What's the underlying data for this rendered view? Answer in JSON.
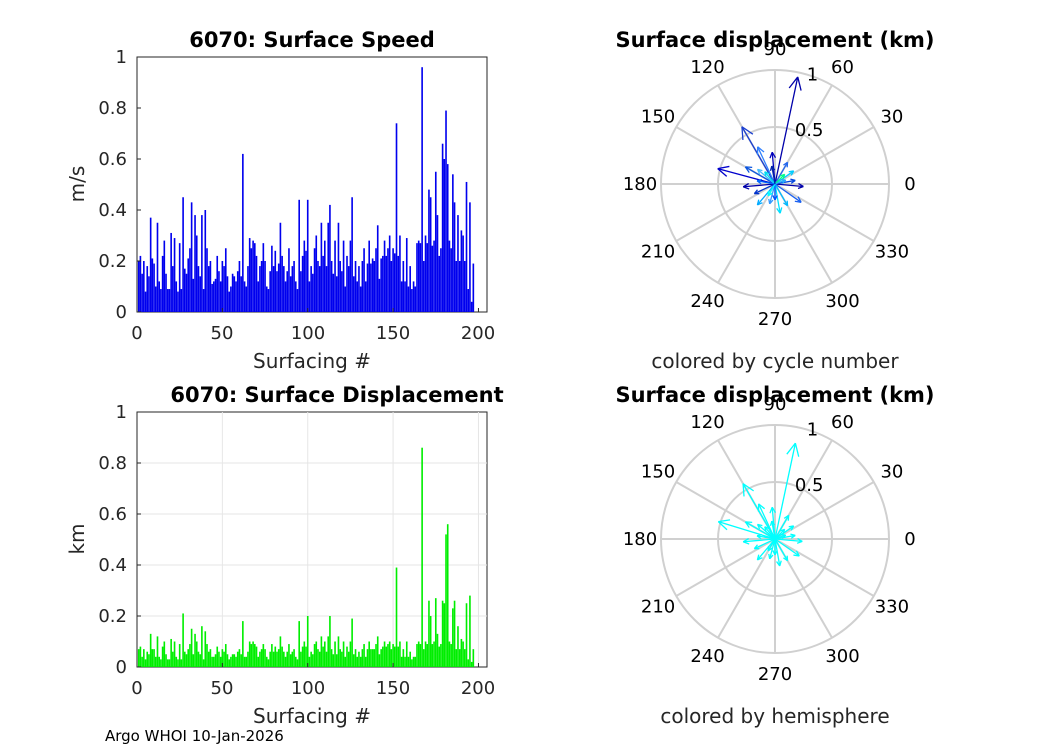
{
  "footer": "Argo WHOI 10-Jan-2026",
  "colors": {
    "speed_bar": "#0000ee",
    "disp_bar": "#00ee00",
    "cyan": "#00ffff",
    "blue": "#0000aa",
    "grid": "#d0d0d0"
  },
  "chart_data": [
    {
      "id": "speed",
      "type": "bar",
      "title": "6070: Surface Speed",
      "xlabel": "Surfacing #",
      "ylabel": "m/s",
      "xlim": [
        0,
        205
      ],
      "ylim": [
        0,
        1
      ],
      "xticks": [
        0,
        50,
        100,
        150,
        200
      ],
      "yticks": [
        0,
        0.2,
        0.4,
        0.6,
        0.8,
        1
      ],
      "ytick_labels": [
        "0",
        "0.2",
        "0.4",
        "0.6",
        "0.8",
        "1"
      ],
      "values": [
        0.2,
        0.22,
        0.15,
        0.2,
        0.08,
        0.18,
        0.14,
        0.37,
        0.21,
        0.19,
        0.1,
        0.35,
        0.12,
        0.09,
        0.22,
        0.28,
        0.15,
        0.09,
        0.09,
        0.31,
        0.18,
        0.29,
        0.12,
        0.08,
        0.27,
        0.09,
        0.45,
        0.17,
        0.15,
        0.21,
        0.25,
        0.43,
        0.13,
        0.38,
        0.3,
        0.18,
        0.14,
        0.38,
        0.09,
        0.4,
        0.25,
        0.18,
        0.2,
        0.11,
        0.12,
        0.13,
        0.22,
        0.16,
        0.12,
        0.2,
        0.18,
        0.25,
        0.14,
        0.08,
        0.1,
        0.15,
        0.14,
        0.12,
        0.16,
        0.2,
        0.14,
        0.62,
        0.12,
        0.1,
        0.18,
        0.29,
        0.25,
        0.28,
        0.27,
        0.22,
        0.12,
        0.18,
        0.2,
        0.27,
        0.2,
        0.1,
        0.09,
        0.16,
        0.26,
        0.18,
        0.24,
        0.16,
        0.19,
        0.35,
        0.22,
        0.18,
        0.12,
        0.16,
        0.25,
        0.14,
        0.18,
        0.2,
        0.12,
        0.09,
        0.44,
        0.16,
        0.22,
        0.28,
        0.24,
        0.44,
        0.12,
        0.18,
        0.15,
        0.25,
        0.3,
        0.2,
        0.18,
        0.35,
        0.22,
        0.28,
        0.18,
        0.35,
        0.42,
        0.2,
        0.15,
        0.28,
        0.14,
        0.35,
        0.2,
        0.16,
        0.28,
        0.1,
        0.22,
        0.18,
        0.28,
        0.45,
        0.14,
        0.2,
        0.12,
        0.18,
        0.1,
        0.2,
        0.25,
        0.12,
        0.19,
        0.28,
        0.19,
        0.21,
        0.2,
        0.25,
        0.34,
        0.13,
        0.21,
        0.22,
        0.28,
        0.22,
        0.25,
        0.3,
        0.2,
        0.25,
        0.23,
        0.74,
        0.22,
        0.3,
        0.12,
        0.2,
        0.12,
        0.29,
        0.1,
        0.18,
        0.09,
        0.12,
        0.1,
        0.27,
        0.28,
        0.27,
        0.96,
        0.2,
        0.3,
        0.27,
        0.48,
        0.45,
        0.26,
        0.28,
        0.55,
        0.38,
        0.22,
        0.25,
        0.66,
        0.6,
        0.79,
        0.58,
        0.28,
        0.25,
        0.54,
        0.43,
        0.2,
        0.38,
        0.2,
        0.32,
        0.3,
        0.2,
        0.51,
        0.09,
        0.43,
        0.04,
        0.19
      ]
    },
    {
      "id": "displacement",
      "type": "bar",
      "title": "6070: Surface Displacement",
      "xlabel": "Surfacing #",
      "ylabel": "km",
      "xlim": [
        0,
        205
      ],
      "ylim": [
        0,
        1
      ],
      "xticks": [
        0,
        50,
        100,
        150,
        200
      ],
      "yticks": [
        0,
        0.2,
        0.4,
        0.6,
        0.8,
        1
      ],
      "ytick_labels": [
        "0",
        "0.2",
        "0.4",
        "0.6",
        "0.8",
        "1"
      ],
      "values": [
        0.07,
        0.08,
        0.04,
        0.07,
        0.03,
        0.06,
        0.05,
        0.13,
        0.07,
        0.07,
        0.04,
        0.12,
        0.04,
        0.03,
        0.08,
        0.1,
        0.05,
        0.03,
        0.03,
        0.11,
        0.06,
        0.1,
        0.04,
        0.03,
        0.09,
        0.03,
        0.21,
        0.06,
        0.05,
        0.07,
        0.09,
        0.15,
        0.05,
        0.13,
        0.1,
        0.06,
        0.05,
        0.16,
        0.03,
        0.14,
        0.09,
        0.06,
        0.07,
        0.04,
        0.04,
        0.05,
        0.08,
        0.06,
        0.04,
        0.07,
        0.06,
        0.09,
        0.05,
        0.03,
        0.04,
        0.05,
        0.05,
        0.04,
        0.06,
        0.07,
        0.05,
        0.18,
        0.04,
        0.04,
        0.06,
        0.1,
        0.09,
        0.1,
        0.09,
        0.08,
        0.04,
        0.06,
        0.07,
        0.09,
        0.07,
        0.04,
        0.03,
        0.06,
        0.09,
        0.06,
        0.08,
        0.06,
        0.07,
        0.12,
        0.08,
        0.06,
        0.04,
        0.06,
        0.09,
        0.05,
        0.06,
        0.07,
        0.04,
        0.03,
        0.18,
        0.06,
        0.08,
        0.1,
        0.08,
        0.2,
        0.04,
        0.06,
        0.05,
        0.09,
        0.1,
        0.07,
        0.06,
        0.12,
        0.08,
        0.1,
        0.06,
        0.12,
        0.2,
        0.07,
        0.05,
        0.1,
        0.05,
        0.12,
        0.07,
        0.06,
        0.1,
        0.04,
        0.08,
        0.06,
        0.1,
        0.19,
        0.05,
        0.07,
        0.04,
        0.06,
        0.04,
        0.07,
        0.09,
        0.04,
        0.07,
        0.1,
        0.07,
        0.07,
        0.07,
        0.09,
        0.12,
        0.05,
        0.07,
        0.08,
        0.1,
        0.08,
        0.09,
        0.1,
        0.07,
        0.09,
        0.08,
        0.39,
        0.08,
        0.1,
        0.04,
        0.07,
        0.04,
        0.1,
        0.04,
        0.06,
        0.03,
        0.04,
        0.04,
        0.09,
        0.1,
        0.09,
        0.86,
        0.07,
        0.1,
        0.09,
        0.26,
        0.2,
        0.09,
        0.1,
        0.27,
        0.13,
        0.08,
        0.09,
        0.26,
        0.25,
        0.52,
        0.56,
        0.1,
        0.09,
        0.23,
        0.26,
        0.07,
        0.16,
        0.07,
        0.11,
        0.1,
        0.07,
        0.25,
        0.03,
        0.28,
        0.02,
        0.07
      ]
    },
    {
      "id": "polar_cycle",
      "type": "polar",
      "title": "Surface displacement (km)",
      "caption": "colored by cycle number",
      "rmax": 1,
      "rticks": [
        0.5,
        1
      ],
      "rtick_labels": [
        "0.5",
        "1"
      ],
      "angle_ticks": [
        0,
        30,
        60,
        90,
        120,
        150,
        180,
        210,
        240,
        270,
        300,
        330
      ],
      "angle_labels": [
        "0",
        "30",
        "60",
        "90",
        "120",
        "150",
        "180",
        "210",
        "240",
        "270",
        "300",
        "330"
      ],
      "vectors": [
        {
          "deg": 78,
          "r": 0.96,
          "color": "#0000aa"
        },
        {
          "deg": 120,
          "r": 0.58,
          "color": "#1a3fd0"
        },
        {
          "deg": 165,
          "r": 0.52,
          "color": "#0000cc"
        },
        {
          "deg": 150,
          "r": 0.3,
          "color": "#0a55e0"
        },
        {
          "deg": 115,
          "r": 0.36,
          "color": "#3080ff"
        },
        {
          "deg": 95,
          "r": 0.28,
          "color": "#0000bb"
        },
        {
          "deg": 60,
          "r": 0.22,
          "color": "#2266ee"
        },
        {
          "deg": 35,
          "r": 0.2,
          "color": "#00ccff"
        },
        {
          "deg": 10,
          "r": 0.18,
          "color": "#0044dd"
        },
        {
          "deg": 355,
          "r": 0.25,
          "color": "#0000aa"
        },
        {
          "deg": 325,
          "r": 0.28,
          "color": "#1a60f0"
        },
        {
          "deg": 300,
          "r": 0.22,
          "color": "#00b8ff"
        },
        {
          "deg": 280,
          "r": 0.26,
          "color": "#00e0ff"
        },
        {
          "deg": 255,
          "r": 0.18,
          "color": "#3399ff"
        },
        {
          "deg": 230,
          "r": 0.24,
          "color": "#00aaff"
        },
        {
          "deg": 205,
          "r": 0.2,
          "color": "#0033cc"
        },
        {
          "deg": 185,
          "r": 0.28,
          "color": "#0000aa"
        },
        {
          "deg": 140,
          "r": 0.2,
          "color": "#44bbff"
        },
        {
          "deg": 130,
          "r": 0.14,
          "color": "#00ddee"
        },
        {
          "deg": 45,
          "r": 0.12,
          "color": "#00ff88"
        },
        {
          "deg": 20,
          "r": 0.1,
          "color": "#22aaff"
        },
        {
          "deg": 270,
          "r": 0.14,
          "color": "#0055ff"
        },
        {
          "deg": 240,
          "r": 0.12,
          "color": "#00ffff"
        },
        {
          "deg": 170,
          "r": 0.16,
          "color": "#0066ff"
        },
        {
          "deg": 100,
          "r": 0.16,
          "color": "#0022aa"
        }
      ]
    },
    {
      "id": "polar_hemisphere",
      "type": "polar",
      "title": "Surface displacement (km)",
      "caption": "colored by hemisphere",
      "rmax": 1,
      "rticks": [
        0.5,
        1
      ],
      "rtick_labels": [
        "0.5",
        "1"
      ],
      "angle_ticks": [
        0,
        30,
        60,
        90,
        120,
        150,
        180,
        210,
        240,
        270,
        300,
        330
      ],
      "angle_labels": [
        "0",
        "30",
        "60",
        "90",
        "120",
        "150",
        "180",
        "210",
        "240",
        "270",
        "300",
        "330"
      ],
      "vectors": [
        {
          "deg": 78,
          "r": 0.86,
          "color": "#00ffff"
        },
        {
          "deg": 120,
          "r": 0.56,
          "color": "#00ffff"
        },
        {
          "deg": 163,
          "r": 0.52,
          "color": "#00ffff"
        },
        {
          "deg": 150,
          "r": 0.3,
          "color": "#00ffff"
        },
        {
          "deg": 115,
          "r": 0.34,
          "color": "#00ffff"
        },
        {
          "deg": 95,
          "r": 0.28,
          "color": "#00ffff"
        },
        {
          "deg": 60,
          "r": 0.24,
          "color": "#00ffff"
        },
        {
          "deg": 35,
          "r": 0.2,
          "color": "#00ffff"
        },
        {
          "deg": 10,
          "r": 0.18,
          "color": "#00ffff"
        },
        {
          "deg": 355,
          "r": 0.24,
          "color": "#00ffff"
        },
        {
          "deg": 325,
          "r": 0.26,
          "color": "#00ffff"
        },
        {
          "deg": 300,
          "r": 0.22,
          "color": "#00ffff"
        },
        {
          "deg": 280,
          "r": 0.24,
          "color": "#00ffff"
        },
        {
          "deg": 255,
          "r": 0.18,
          "color": "#00ffff"
        },
        {
          "deg": 230,
          "r": 0.24,
          "color": "#00ffff"
        },
        {
          "deg": 205,
          "r": 0.2,
          "color": "#00ffff"
        },
        {
          "deg": 185,
          "r": 0.28,
          "color": "#00ffff"
        },
        {
          "deg": 140,
          "r": 0.2,
          "color": "#00ffff"
        },
        {
          "deg": 130,
          "r": 0.14,
          "color": "#00ffff"
        },
        {
          "deg": 45,
          "r": 0.12,
          "color": "#00ffff"
        },
        {
          "deg": 20,
          "r": 0.1,
          "color": "#00ffff"
        },
        {
          "deg": 270,
          "r": 0.14,
          "color": "#00ffff"
        },
        {
          "deg": 240,
          "r": 0.12,
          "color": "#00ffff"
        },
        {
          "deg": 170,
          "r": 0.16,
          "color": "#00ffff"
        },
        {
          "deg": 100,
          "r": 0.16,
          "color": "#00ffff"
        }
      ]
    }
  ]
}
